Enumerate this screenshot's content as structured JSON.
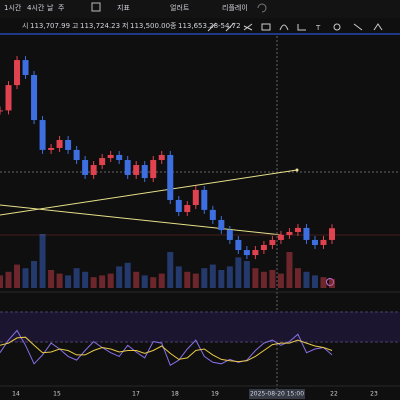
{
  "toolbar": {
    "intervals": [
      "1시간",
      "4시간",
      "날",
      "주"
    ],
    "indicators": "지표",
    "alerts": "얼러트",
    "replay": "리플레이"
  },
  "ohlc": {
    "open_label": "시",
    "open": "113,707.99",
    "high_label": "고",
    "high": "113,724.23",
    "low_label": "저",
    "low": "113,500.00",
    "close_label": "종",
    "close": "113,653.28",
    "change": "-54.72"
  },
  "chart_data": {
    "type": "candlestick",
    "close": [
      120900,
      122460,
      124000,
      123080,
      120310,
      118470,
      118590,
      119080,
      118470,
      117850,
      116930,
      117540,
      117970,
      118160,
      117850,
      116930,
      117540,
      116740,
      117850,
      118160,
      115390,
      114650,
      115080,
      116010,
      114780,
      114160,
      113540,
      112930,
      112310,
      112000,
      112310,
      112620,
      112930,
      113240,
      113420,
      113670,
      112930,
      112620,
      112930,
      113650
    ],
    "ylim": [
      109850,
      125850
    ],
    "up_color": "#e0424f",
    "down_color": "#3d6fe0",
    "volume": [
      14,
      18,
      26,
      22,
      30,
      60,
      20,
      16,
      14,
      22,
      18,
      12,
      14,
      16,
      24,
      28,
      18,
      14,
      12,
      16,
      40,
      24,
      18,
      16,
      22,
      26,
      20,
      24,
      34,
      30,
      22,
      18,
      20,
      16,
      40,
      22,
      18,
      14,
      12,
      10
    ],
    "volume_lim": [
      0,
      100
    ],
    "rsi": [
      {
        "name": "RSI",
        "color": "#8a6fe8",
        "values": [
          45,
          62,
          75,
          55,
          30,
          42,
          58,
          50,
          40,
          35,
          48,
          60,
          52,
          45,
          40,
          55,
          46,
          38,
          60,
          58,
          28,
          35,
          50,
          62,
          40,
          32,
          30,
          36,
          32,
          35,
          48,
          58,
          62,
          55,
          60,
          70,
          45,
          50,
          52,
          42
        ]
      },
      {
        "name": "MA",
        "color": "#e8c94a",
        "values": [
          55,
          58,
          65,
          66,
          55,
          45,
          46,
          50,
          48,
          42,
          42,
          48,
          52,
          50,
          46,
          48,
          48,
          44,
          48,
          54,
          44,
          36,
          38,
          48,
          50,
          42,
          36,
          34,
          33,
          34,
          40,
          48,
          56,
          58,
          58,
          62,
          58,
          54,
          52,
          48
        ]
      }
    ],
    "rsi_lim": [
      0,
      100
    ],
    "xticks": [
      "14",
      "15",
      "17",
      "18",
      "19",
      "2025-08-20 15:00",
      "22",
      "23"
    ]
  }
}
